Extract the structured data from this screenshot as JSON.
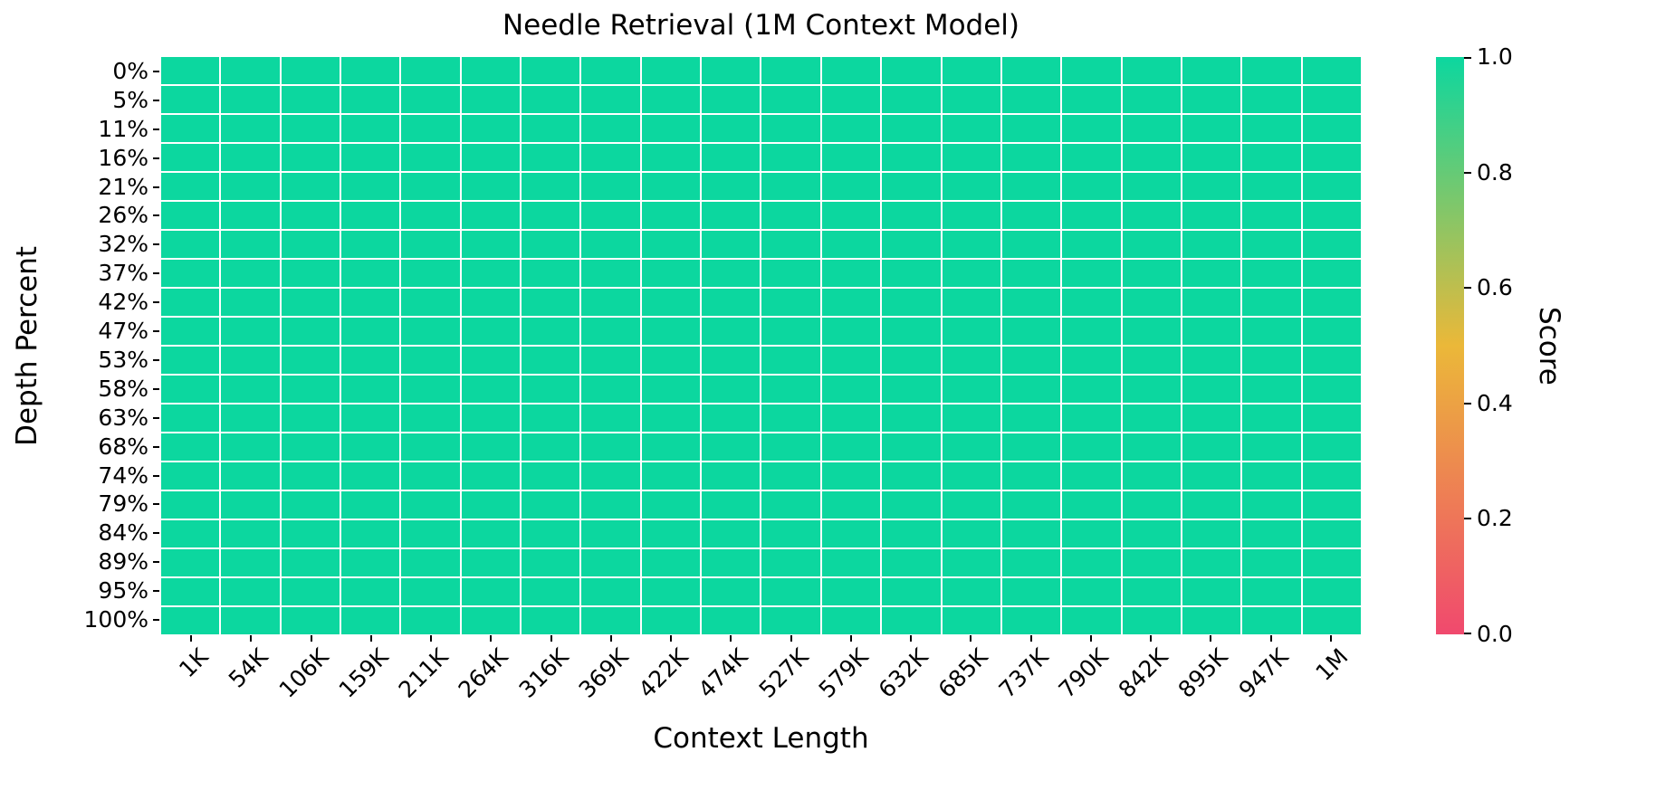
{
  "title": "Needle Retrieval (1M Context Model)",
  "axes": {
    "xlabel": "Context Length",
    "ylabel": "Depth Percent"
  },
  "colorbar": {
    "label": "Score",
    "tick_labels": [
      "1.0",
      "0.8",
      "0.6",
      "0.4",
      "0.2",
      "0.0"
    ],
    "tick_values": [
      1.0,
      0.8,
      0.6,
      0.4,
      0.2,
      0.0
    ],
    "gradient_stops_bottom_to_top": [
      "#f0496e",
      "#ebb839",
      "#0cd79f"
    ]
  },
  "chart_data": {
    "type": "heatmap",
    "title": "Needle Retrieval (1M Context Model)",
    "xlabel": "Context Length",
    "ylabel": "Depth Percent",
    "colorbar_label": "Score",
    "x_categories": [
      "1K",
      "54K",
      "106K",
      "159K",
      "211K",
      "264K",
      "316K",
      "369K",
      "422K",
      "474K",
      "527K",
      "579K",
      "632K",
      "685K",
      "737K",
      "790K",
      "842K",
      "895K",
      "947K",
      "1M"
    ],
    "y_categories": [
      "0%",
      "5%",
      "11%",
      "16%",
      "21%",
      "26%",
      "32%",
      "37%",
      "42%",
      "47%",
      "53%",
      "58%",
      "63%",
      "68%",
      "74%",
      "79%",
      "84%",
      "89%",
      "95%",
      "100%"
    ],
    "values": [
      [
        1.0,
        1.0,
        1.0,
        1.0,
        1.0,
        1.0,
        1.0,
        1.0,
        1.0,
        1.0,
        1.0,
        1.0,
        1.0,
        1.0,
        1.0,
        1.0,
        1.0,
        1.0,
        1.0,
        1.0
      ],
      [
        1.0,
        1.0,
        1.0,
        1.0,
        1.0,
        1.0,
        1.0,
        1.0,
        1.0,
        1.0,
        1.0,
        1.0,
        1.0,
        1.0,
        1.0,
        1.0,
        1.0,
        1.0,
        1.0,
        1.0
      ],
      [
        1.0,
        1.0,
        1.0,
        1.0,
        1.0,
        1.0,
        1.0,
        1.0,
        1.0,
        1.0,
        1.0,
        1.0,
        1.0,
        1.0,
        1.0,
        1.0,
        1.0,
        1.0,
        1.0,
        1.0
      ],
      [
        1.0,
        1.0,
        1.0,
        1.0,
        1.0,
        1.0,
        1.0,
        1.0,
        1.0,
        1.0,
        1.0,
        1.0,
        1.0,
        1.0,
        1.0,
        1.0,
        1.0,
        1.0,
        1.0,
        1.0
      ],
      [
        1.0,
        1.0,
        1.0,
        1.0,
        1.0,
        1.0,
        1.0,
        1.0,
        1.0,
        1.0,
        1.0,
        1.0,
        1.0,
        1.0,
        1.0,
        1.0,
        1.0,
        1.0,
        1.0,
        1.0
      ],
      [
        1.0,
        1.0,
        1.0,
        1.0,
        1.0,
        1.0,
        1.0,
        1.0,
        1.0,
        1.0,
        1.0,
        1.0,
        1.0,
        1.0,
        1.0,
        1.0,
        1.0,
        1.0,
        1.0,
        1.0
      ],
      [
        1.0,
        1.0,
        1.0,
        1.0,
        1.0,
        1.0,
        1.0,
        1.0,
        1.0,
        1.0,
        1.0,
        1.0,
        1.0,
        1.0,
        1.0,
        1.0,
        1.0,
        1.0,
        1.0,
        1.0
      ],
      [
        1.0,
        1.0,
        1.0,
        1.0,
        1.0,
        1.0,
        1.0,
        1.0,
        1.0,
        1.0,
        1.0,
        1.0,
        1.0,
        1.0,
        1.0,
        1.0,
        1.0,
        1.0,
        1.0,
        1.0
      ],
      [
        1.0,
        1.0,
        1.0,
        1.0,
        1.0,
        1.0,
        1.0,
        1.0,
        1.0,
        1.0,
        1.0,
        1.0,
        1.0,
        1.0,
        1.0,
        1.0,
        1.0,
        1.0,
        1.0,
        1.0
      ],
      [
        1.0,
        1.0,
        1.0,
        1.0,
        1.0,
        1.0,
        1.0,
        1.0,
        1.0,
        1.0,
        1.0,
        1.0,
        1.0,
        1.0,
        1.0,
        1.0,
        1.0,
        1.0,
        1.0,
        1.0
      ],
      [
        1.0,
        1.0,
        1.0,
        1.0,
        1.0,
        1.0,
        1.0,
        1.0,
        1.0,
        1.0,
        1.0,
        1.0,
        1.0,
        1.0,
        1.0,
        1.0,
        1.0,
        1.0,
        1.0,
        1.0
      ],
      [
        1.0,
        1.0,
        1.0,
        1.0,
        1.0,
        1.0,
        1.0,
        1.0,
        1.0,
        1.0,
        1.0,
        1.0,
        1.0,
        1.0,
        1.0,
        1.0,
        1.0,
        1.0,
        1.0,
        1.0
      ],
      [
        1.0,
        1.0,
        1.0,
        1.0,
        1.0,
        1.0,
        1.0,
        1.0,
        1.0,
        1.0,
        1.0,
        1.0,
        1.0,
        1.0,
        1.0,
        1.0,
        1.0,
        1.0,
        1.0,
        1.0
      ],
      [
        1.0,
        1.0,
        1.0,
        1.0,
        1.0,
        1.0,
        1.0,
        1.0,
        1.0,
        1.0,
        1.0,
        1.0,
        1.0,
        1.0,
        1.0,
        1.0,
        1.0,
        1.0,
        1.0,
        1.0
      ],
      [
        1.0,
        1.0,
        1.0,
        1.0,
        1.0,
        1.0,
        1.0,
        1.0,
        1.0,
        1.0,
        1.0,
        1.0,
        1.0,
        1.0,
        1.0,
        1.0,
        1.0,
        1.0,
        1.0,
        1.0
      ],
      [
        1.0,
        1.0,
        1.0,
        1.0,
        1.0,
        1.0,
        1.0,
        1.0,
        1.0,
        1.0,
        1.0,
        1.0,
        1.0,
        1.0,
        1.0,
        1.0,
        1.0,
        1.0,
        1.0,
        1.0
      ],
      [
        1.0,
        1.0,
        1.0,
        1.0,
        1.0,
        1.0,
        1.0,
        1.0,
        1.0,
        1.0,
        1.0,
        1.0,
        1.0,
        1.0,
        1.0,
        1.0,
        1.0,
        1.0,
        1.0,
        1.0
      ],
      [
        1.0,
        1.0,
        1.0,
        1.0,
        1.0,
        1.0,
        1.0,
        1.0,
        1.0,
        1.0,
        1.0,
        1.0,
        1.0,
        1.0,
        1.0,
        1.0,
        1.0,
        1.0,
        1.0,
        1.0
      ],
      [
        1.0,
        1.0,
        1.0,
        1.0,
        1.0,
        1.0,
        1.0,
        1.0,
        1.0,
        1.0,
        1.0,
        1.0,
        1.0,
        1.0,
        1.0,
        1.0,
        1.0,
        1.0,
        1.0,
        1.0
      ],
      [
        1.0,
        1.0,
        1.0,
        1.0,
        1.0,
        1.0,
        1.0,
        1.0,
        1.0,
        1.0,
        1.0,
        1.0,
        1.0,
        1.0,
        1.0,
        1.0,
        1.0,
        1.0,
        1.0,
        1.0
      ]
    ],
    "value_range": [
      0.0,
      1.0
    ],
    "uniform_cell_color": "#0cd79f",
    "colormap_low_mid_high": [
      "#f0496e",
      "#ebb839",
      "#0cd79f"
    ],
    "grid_line_color": "#ffffff",
    "legend_position": "right colorbar"
  }
}
